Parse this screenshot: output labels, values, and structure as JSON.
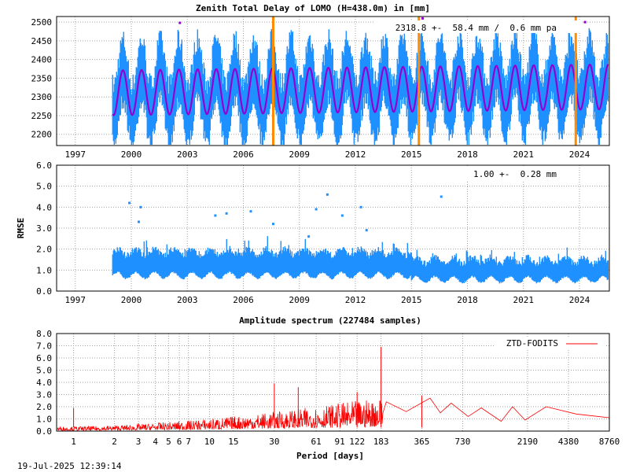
{
  "footer_timestamp": "19-Jul-2025 12:39:14",
  "colors": {
    "ztd_raw": "#1e90ff",
    "ztd_fit": "#9400d3",
    "rmse": "#1e90ff",
    "events": "#ff8c00",
    "spectrum": "#ff0000",
    "grid": "#a0a0a0"
  },
  "chart_data": [
    {
      "type": "scatter",
      "title": "Zenith Total Delay of LOMO (H=438.0m) in [mm]",
      "annotation": "2318.8 +-  58.4 mm /  0.6 mm pa",
      "x_ticks": [
        "1997",
        "2000",
        "2003",
        "2006",
        "2009",
        "2012",
        "2015",
        "2018",
        "2021",
        "2024"
      ],
      "y_ticks": [
        "2200",
        "2250",
        "2300",
        "2350",
        "2400",
        "2450",
        "2500"
      ],
      "xlim": [
        1996.0,
        2025.6
      ],
      "ylim": [
        2170,
        2515
      ],
      "grid": true,
      "data_start": 1999.0,
      "data_end": 2025.6,
      "mean": 2318.8,
      "std": 58.4,
      "trend_mm_per_year": 0.6,
      "seasonal_amplitude": 60,
      "scatter_range": 110,
      "event_years": [
        2007.6,
        2015.4,
        2023.8
      ],
      "outliers": [
        {
          "x": 2002.6,
          "y": 2498
        },
        {
          "x": 2015.6,
          "y": 2510
        },
        {
          "x": 2024.3,
          "y": 2500
        }
      ]
    },
    {
      "type": "scatter",
      "ylabel": "RMSE",
      "annotation": "1.00 +-  0.28 mm",
      "x_ticks": [
        "1997",
        "2000",
        "2003",
        "2006",
        "2009",
        "2012",
        "2015",
        "2018",
        "2021",
        "2024"
      ],
      "y_ticks": [
        "0.0",
        "1.0",
        "2.0",
        "3.0",
        "4.0",
        "5.0",
        "6.0"
      ],
      "xlim": [
        1996.0,
        2025.6
      ],
      "ylim": [
        0,
        6
      ],
      "grid": true,
      "segments": [
        {
          "from": 1999.0,
          "to": 2015.0,
          "low": 0.8,
          "high": 2.0
        },
        {
          "from": 2015.0,
          "to": 2025.6,
          "low": 0.6,
          "high": 1.6
        }
      ],
      "outliers": [
        {
          "x": 1999.9,
          "y": 4.2
        },
        {
          "x": 2000.5,
          "y": 4.0
        },
        {
          "x": 2004.5,
          "y": 3.6
        },
        {
          "x": 2005.1,
          "y": 3.7
        },
        {
          "x": 2006.4,
          "y": 3.8
        },
        {
          "x": 2007.6,
          "y": 3.2
        },
        {
          "x": 2009.9,
          "y": 3.9
        },
        {
          "x": 2010.5,
          "y": 4.6
        },
        {
          "x": 2011.3,
          "y": 3.6
        },
        {
          "x": 2012.3,
          "y": 4.0
        },
        {
          "x": 2016.6,
          "y": 4.5
        },
        {
          "x": 2000.4,
          "y": 3.3
        },
        {
          "x": 2012.6,
          "y": 2.9
        },
        {
          "x": 2009.5,
          "y": 2.6
        }
      ]
    },
    {
      "type": "line",
      "title": "Amplitude spectrum (227484 samples)",
      "xlabel": "Period [days]",
      "legend": "ZTD-FODITS",
      "legend_position": "top-right",
      "x_scale": "log",
      "x_ticks": [
        "1",
        "2",
        "3",
        "4",
        "5",
        "6",
        "7",
        "10",
        "15",
        "30",
        "61",
        "91",
        "122",
        "183",
        "365",
        "730",
        "2190",
        "4380",
        "8760"
      ],
      "y_ticks": [
        "0.0",
        "1.0",
        "2.0",
        "3.0",
        "4.0",
        "5.0",
        "6.0",
        "7.0",
        "8.0"
      ],
      "xlim": [
        0.75,
        8760
      ],
      "ylim": [
        0,
        8
      ],
      "grid": true,
      "peaks": [
        {
          "period": 1.0,
          "amplitude": 1.9
        },
        {
          "period": 183,
          "amplitude": 6.9
        },
        {
          "period": 365,
          "amplitude": 2.9
        },
        {
          "period": 45,
          "amplitude": 3.6
        },
        {
          "period": 30,
          "amplitude": 3.9
        },
        {
          "period": 122,
          "amplitude": 3.2
        }
      ],
      "long_period": [
        {
          "period": 200,
          "amplitude": 2.4
        },
        {
          "period": 280,
          "amplitude": 1.6
        },
        {
          "period": 420,
          "amplitude": 2.7
        },
        {
          "period": 500,
          "amplitude": 1.5
        },
        {
          "period": 600,
          "amplitude": 2.3
        },
        {
          "period": 800,
          "amplitude": 1.2
        },
        {
          "period": 1000,
          "amplitude": 1.9
        },
        {
          "period": 1400,
          "amplitude": 0.8
        },
        {
          "period": 1700,
          "amplitude": 2.0
        },
        {
          "period": 2100,
          "amplitude": 0.9
        },
        {
          "period": 3000,
          "amplitude": 2.0
        },
        {
          "period": 5000,
          "amplitude": 1.4
        },
        {
          "period": 8760,
          "amplitude": 1.1
        }
      ]
    }
  ]
}
